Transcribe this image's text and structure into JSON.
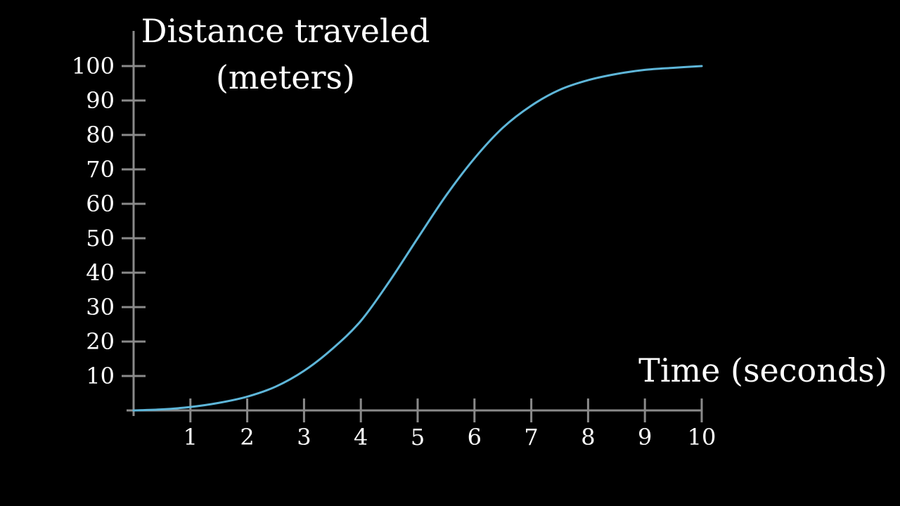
{
  "colors": {
    "background": "#000000",
    "axis": "#8a8a8a",
    "text": "#ffffff",
    "curve": "#5eb6d9"
  },
  "chart_data": {
    "type": "line",
    "title": "",
    "xlabel": "Time (seconds)",
    "ylabel_lines": [
      "Distance traveled",
      "(meters)"
    ],
    "xlim": [
      0,
      10
    ],
    "ylim": [
      0,
      100
    ],
    "x_ticks": [
      1,
      2,
      3,
      4,
      5,
      6,
      7,
      8,
      9,
      10
    ],
    "y_ticks": [
      10,
      20,
      30,
      40,
      50,
      60,
      70,
      80,
      90,
      100
    ],
    "grid": false,
    "series": [
      {
        "x": [
          0,
          0.5,
          1,
          1.5,
          2,
          2.5,
          3,
          3.5,
          4,
          4.5,
          5,
          5.5,
          6,
          6.5,
          7,
          7.5,
          8,
          8.5,
          9,
          9.5,
          10
        ],
        "values": [
          0,
          0.3,
          1.0,
          2.2,
          4.0,
          6.9,
          11.5,
          17.9,
          26.0,
          37.4,
          50.0,
          62.4,
          73.2,
          82.1,
          88.5,
          93.1,
          95.9,
          97.7,
          98.9,
          99.5,
          100
        ]
      }
    ]
  }
}
